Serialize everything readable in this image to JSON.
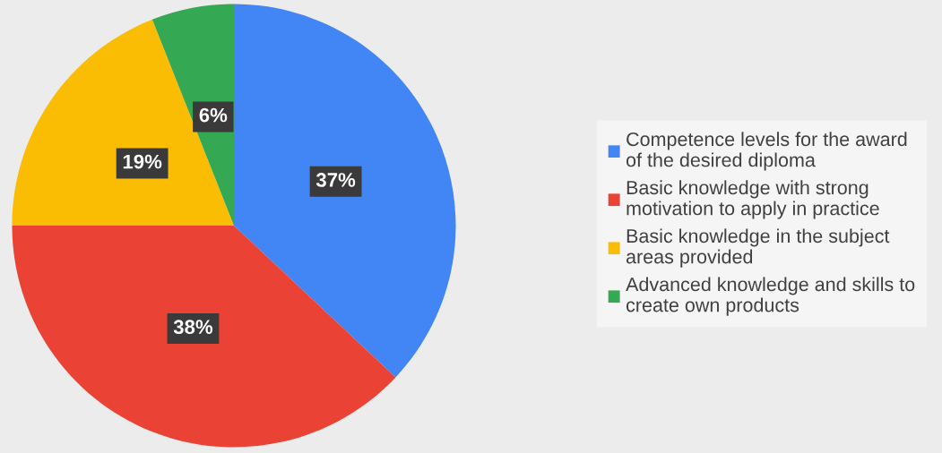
{
  "chart_data": {
    "type": "pie",
    "categories": [
      "Competence levels for the award\nof the desired diploma",
      "Basic knowledge with strong\nmotivation to apply in practice",
      "Basic knowledge in the subject\nareas provided",
      "Advanced knowledge and skills to\ncreate own products"
    ],
    "values": [
      37,
      38,
      19,
      6
    ],
    "value_labels": [
      "37%",
      "38%",
      "19%",
      "6%"
    ],
    "colors": [
      "#4285f4",
      "#ea4335",
      "#fbbc04",
      "#34a853"
    ],
    "legend": "right"
  }
}
